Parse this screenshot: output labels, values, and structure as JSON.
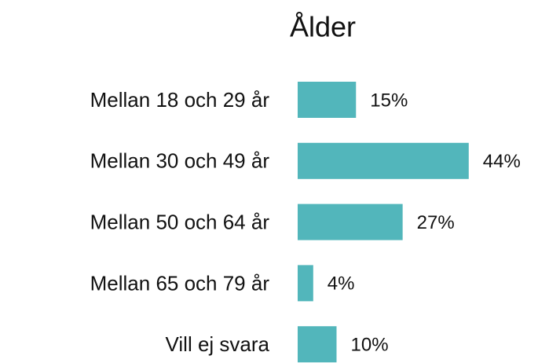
{
  "chart_data": {
    "type": "bar",
    "orientation": "horizontal",
    "title": "Ålder",
    "categories": [
      "Mellan 18 och 29 år",
      "Mellan 30 och 49 år",
      "Mellan 50 och 64 år",
      "Mellan 65 och 79 år",
      "Vill ej svara"
    ],
    "values": [
      15,
      44,
      27,
      4,
      10
    ],
    "value_labels": [
      "15%",
      "44%",
      "27%",
      "4%",
      "10%"
    ],
    "color": "#52b6bb"
  }
}
